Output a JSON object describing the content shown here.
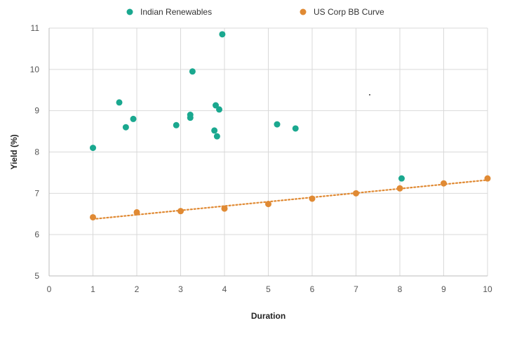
{
  "chart_data": {
    "type": "scatter",
    "title": "",
    "xlabel": "Duration",
    "ylabel": "Yield (%)",
    "xlim": [
      0,
      10
    ],
    "ylim": [
      5,
      11
    ],
    "x_ticks": [
      0,
      1,
      2,
      3,
      4,
      5,
      6,
      7,
      8,
      9,
      10
    ],
    "y_ticks": [
      5,
      6,
      7,
      8,
      9,
      10,
      11
    ],
    "grid": true,
    "legend_position": "top-center",
    "series": [
      {
        "name": "Indian Renewables",
        "color": "#1aa88f",
        "points": [
          {
            "x": 1.0,
            "y": 8.1
          },
          {
            "x": 1.6,
            "y": 9.2
          },
          {
            "x": 1.75,
            "y": 8.6
          },
          {
            "x": 1.92,
            "y": 8.8
          },
          {
            "x": 2.9,
            "y": 8.65
          },
          {
            "x": 3.22,
            "y": 8.9
          },
          {
            "x": 3.22,
            "y": 8.83
          },
          {
            "x": 3.27,
            "y": 9.95
          },
          {
            "x": 3.77,
            "y": 8.52
          },
          {
            "x": 3.8,
            "y": 9.13
          },
          {
            "x": 3.83,
            "y": 8.38
          },
          {
            "x": 3.88,
            "y": 9.03
          },
          {
            "x": 3.95,
            "y": 10.85
          },
          {
            "x": 5.2,
            "y": 8.67
          },
          {
            "x": 5.62,
            "y": 8.57
          },
          {
            "x": 8.04,
            "y": 7.36
          }
        ]
      },
      {
        "name": "US Corp BB Curve",
        "color": "#e08a34",
        "trendline": true,
        "trendline_range": [
          1,
          10
        ],
        "points": [
          {
            "x": 1,
            "y": 6.42
          },
          {
            "x": 2,
            "y": 6.54
          },
          {
            "x": 3,
            "y": 6.57
          },
          {
            "x": 4,
            "y": 6.63
          },
          {
            "x": 5,
            "y": 6.74
          },
          {
            "x": 6,
            "y": 6.87
          },
          {
            "x": 7,
            "y": 7.0
          },
          {
            "x": 8,
            "y": 7.12
          },
          {
            "x": 9,
            "y": 7.24
          },
          {
            "x": 10,
            "y": 7.36
          }
        ]
      }
    ]
  }
}
